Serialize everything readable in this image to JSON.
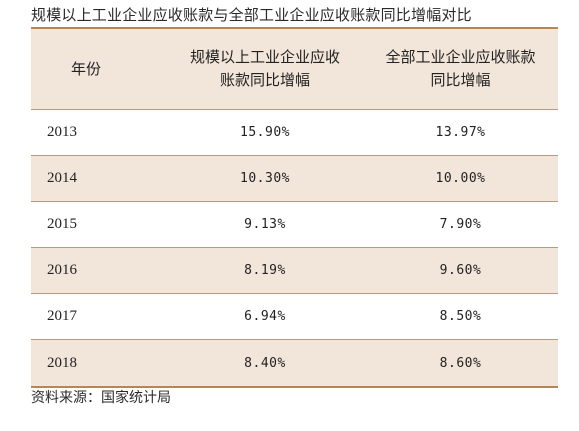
{
  "title": "规模以上工业企业应收账款与全部工业企业应收账款同比增幅对比",
  "table": {
    "headers": {
      "year": "年份",
      "col_a": [
        "规模以上工业企业应收",
        "账款同比增幅"
      ],
      "col_b": [
        "全部工业企业应收账款",
        "同比增幅"
      ]
    },
    "rows": [
      {
        "year": "2013",
        "a": "15.90%",
        "b": "13.97%"
      },
      {
        "year": "2014",
        "a": "10.30%",
        "b": "10.00%"
      },
      {
        "year": "2015",
        "a": "9.13%",
        "b": "7.90%"
      },
      {
        "year": "2016",
        "a": "8.19%",
        "b": "9.60%"
      },
      {
        "year": "2017",
        "a": "6.94%",
        "b": "8.50%"
      },
      {
        "year": "2018",
        "a": "8.40%",
        "b": "8.60%"
      }
    ]
  },
  "source": "资料来源：国家统计局",
  "colors": {
    "shaded_row": "#f2e6da",
    "rule": "#b4875a"
  }
}
